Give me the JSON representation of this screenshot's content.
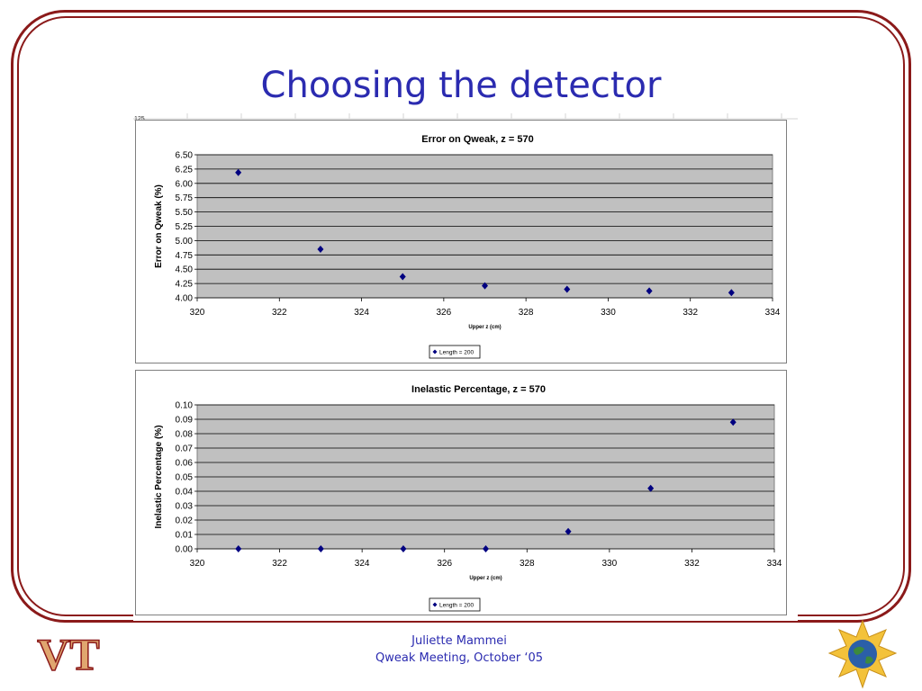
{
  "slide": {
    "title": "Choosing the detector",
    "footer_author": "Juliette Mammei",
    "footer_event": "Qweak Meeting, October ‘05",
    "sheet_fragment": "125",
    "colors": {
      "frame": "#8b1a1a",
      "title": "#2b2bb0",
      "marker": "#000080",
      "plot_bg": "#c0c0c0"
    }
  },
  "logos": {
    "left": "VT",
    "right": "globe-star-icon"
  },
  "chart_data": [
    {
      "type": "scatter",
      "title": "Error on Qweak, z = 570",
      "xlabel": "Upper z (cm)",
      "ylabel": "Error on Qweak (%)",
      "xlim": [
        320,
        334
      ],
      "ylim": [
        4.0,
        6.5
      ],
      "x_ticks": [
        "320",
        "322",
        "324",
        "326",
        "328",
        "330",
        "332",
        "334"
      ],
      "y_ticks": [
        "4.00",
        "4.25",
        "4.50",
        "4.75",
        "5.00",
        "5.25",
        "5.50",
        "5.75",
        "6.00",
        "6.25",
        "6.50"
      ],
      "grid": true,
      "legend": "bottom",
      "series": [
        {
          "name": "Length = 200",
          "x": [
            321,
            323,
            325,
            327,
            329,
            331,
            333
          ],
          "y": [
            6.19,
            4.85,
            4.37,
            4.21,
            4.15,
            4.12,
            4.09
          ]
        }
      ]
    },
    {
      "type": "scatter",
      "title": "Inelastic Percentage, z = 570",
      "xlabel": "Upper z (cm)",
      "ylabel": "Inelastic Percentage (%)",
      "xlim": [
        320,
        334
      ],
      "ylim": [
        0.0,
        0.1
      ],
      "x_ticks": [
        "320",
        "322",
        "324",
        "326",
        "328",
        "330",
        "332",
        "334"
      ],
      "y_ticks": [
        "0.00",
        "0.01",
        "0.02",
        "0.03",
        "0.04",
        "0.05",
        "0.06",
        "0.07",
        "0.08",
        "0.09",
        "0.10"
      ],
      "grid": true,
      "legend": "bottom",
      "series": [
        {
          "name": "Length = 200",
          "x": [
            321,
            323,
            325,
            327,
            329,
            331,
            333
          ],
          "y": [
            0.0,
            0.0,
            0.0,
            0.0,
            0.012,
            0.042,
            0.088
          ]
        }
      ]
    }
  ]
}
